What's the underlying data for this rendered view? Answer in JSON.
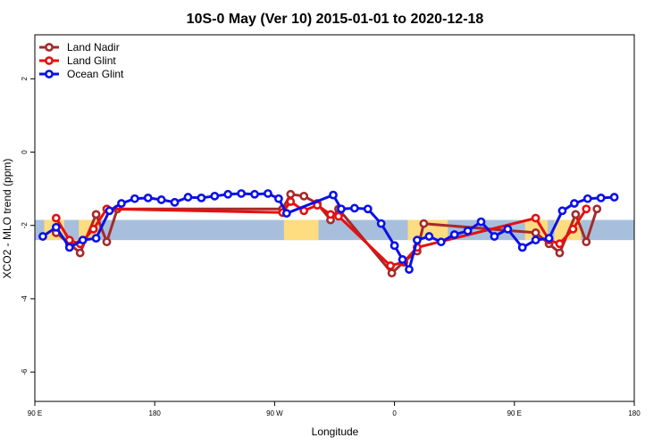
{
  "chart_data": {
    "type": "line",
    "title": "10S-0 May (Ver 10)   2015-01-01 to 2020-12-18",
    "xlabel": "Longitude",
    "ylabel": "XCO2 - MLO trend (ppm)",
    "xlim": [
      90,
      540
    ],
    "ylim": [
      -6.8,
      3.2
    ],
    "x_ticks": [
      {
        "value": 90,
        "label": "90 E"
      },
      {
        "value": 180,
        "label": "180"
      },
      {
        "value": 270,
        "label": "90 W"
      },
      {
        "value": 360,
        "label": "0"
      },
      {
        "value": 450,
        "label": "90 E"
      },
      {
        "value": 540,
        "label": "180"
      }
    ],
    "y_ticks": [
      {
        "value": 2,
        "label": "2"
      },
      {
        "value": 0,
        "label": "0"
      },
      {
        "value": -2,
        "label": "-2"
      },
      {
        "value": -4,
        "label": "-4"
      },
      {
        "value": -6,
        "label": "-6"
      }
    ],
    "legend_position": "top-left",
    "grid": false,
    "band": {
      "y_min": -2.4,
      "y_max": -1.85,
      "ocean_color": "#a7bfdc",
      "land_color": "#fedc80"
    },
    "land_segments": [
      [
        97,
        112
      ],
      [
        123,
        138
      ],
      [
        277,
        303
      ],
      [
        370,
        400
      ],
      [
        458,
        475
      ],
      [
        480,
        500
      ]
    ],
    "series": [
      {
        "name": "Land Nadir",
        "color": "#a52a2a",
        "points": [
          [
            106,
            -2.2
          ],
          [
            116,
            -2.5
          ],
          [
            124,
            -2.75
          ],
          [
            136,
            -1.7
          ],
          [
            144,
            -2.45
          ],
          [
            152,
            -1.55
          ],
          [
            276,
            -1.55
          ],
          [
            282,
            -1.15
          ],
          [
            292,
            -1.2
          ],
          [
            302,
            -1.4
          ],
          [
            312,
            -1.85
          ],
          [
            318,
            -1.55
          ],
          [
            358,
            -3.3
          ],
          [
            367,
            -3.0
          ],
          [
            377,
            -2.7
          ],
          [
            382,
            -1.95
          ],
          [
            466,
            -2.2
          ],
          [
            476,
            -2.5
          ],
          [
            484,
            -2.75
          ],
          [
            496,
            -1.7
          ],
          [
            504,
            -2.45
          ],
          [
            512,
            -1.55
          ]
        ]
      },
      {
        "name": "Land Glint",
        "color": "#e61010",
        "points": [
          [
            106,
            -1.8
          ],
          [
            116,
            -2.4
          ],
          [
            124,
            -2.5
          ],
          [
            134,
            -2.1
          ],
          [
            144,
            -1.55
          ],
          [
            276,
            -1.65
          ],
          [
            282,
            -1.35
          ],
          [
            292,
            -1.6
          ],
          [
            302,
            -1.45
          ],
          [
            312,
            -1.7
          ],
          [
            318,
            -1.75
          ],
          [
            357,
            -3.1
          ],
          [
            367,
            -3.0
          ],
          [
            377,
            -2.6
          ],
          [
            466,
            -1.8
          ],
          [
            476,
            -2.4
          ],
          [
            484,
            -2.5
          ],
          [
            494,
            -2.1
          ],
          [
            504,
            -1.55
          ]
        ]
      },
      {
        "name": "Ocean Glint",
        "color": "#0a10e8",
        "points": [
          [
            96,
            -2.3
          ],
          [
            106,
            -2.05
          ],
          [
            116,
            -2.6
          ],
          [
            126,
            -2.4
          ],
          [
            136,
            -2.35
          ],
          [
            146,
            -1.6
          ],
          [
            155,
            -1.4
          ],
          [
            165,
            -1.27
          ],
          [
            175,
            -1.25
          ],
          [
            185,
            -1.3
          ],
          [
            195,
            -1.37
          ],
          [
            205,
            -1.23
          ],
          [
            215,
            -1.25
          ],
          [
            225,
            -1.2
          ],
          [
            235,
            -1.15
          ],
          [
            245,
            -1.13
          ],
          [
            255,
            -1.15
          ],
          [
            265,
            -1.13
          ],
          [
            273,
            -1.27
          ],
          [
            279,
            -1.67
          ],
          [
            314,
            -1.17
          ],
          [
            320,
            -1.55
          ],
          [
            330,
            -1.53
          ],
          [
            340,
            -1.55
          ],
          [
            350,
            -1.95
          ],
          [
            360,
            -2.55
          ],
          [
            366,
            -2.93
          ],
          [
            371,
            -3.2
          ],
          [
            377,
            -2.4
          ],
          [
            386,
            -2.3
          ],
          [
            395,
            -2.45
          ],
          [
            405,
            -2.25
          ],
          [
            415,
            -2.15
          ],
          [
            425,
            -1.9
          ],
          [
            435,
            -2.3
          ],
          [
            445,
            -2.1
          ],
          [
            456,
            -2.6
          ],
          [
            466,
            -2.4
          ],
          [
            476,
            -2.35
          ],
          [
            486,
            -1.6
          ],
          [
            495,
            -1.4
          ],
          [
            505,
            -1.27
          ],
          [
            515,
            -1.25
          ],
          [
            525,
            -1.23
          ]
        ]
      }
    ]
  }
}
